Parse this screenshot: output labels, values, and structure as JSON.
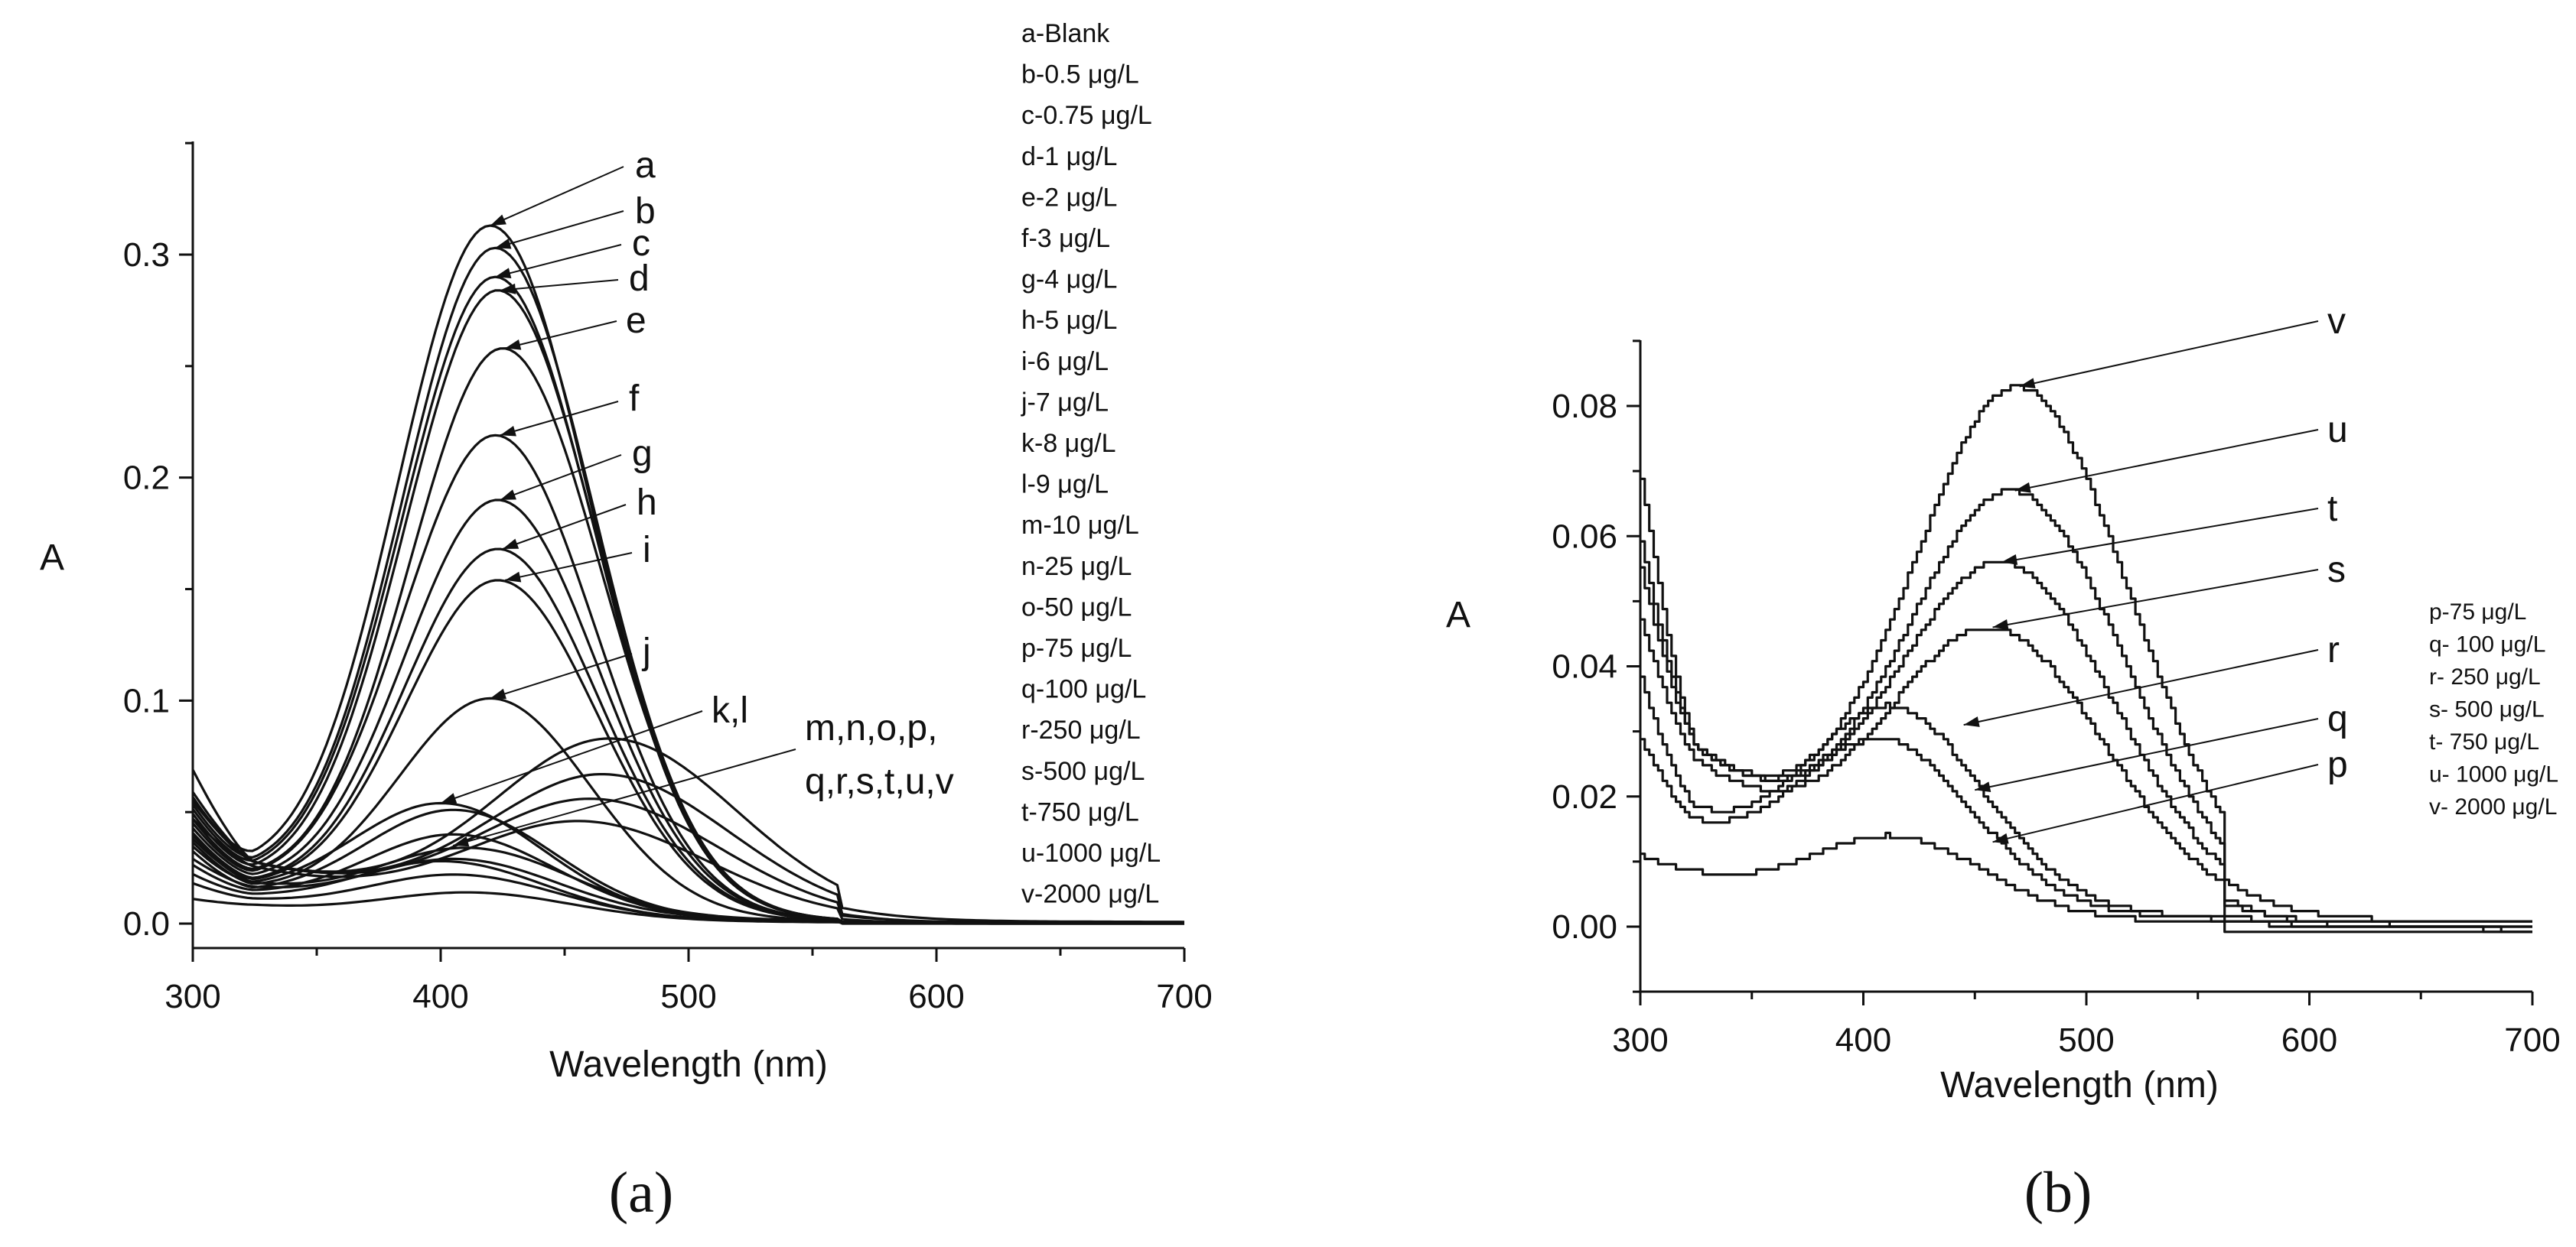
{
  "chart_data": [
    {
      "type": "line",
      "panel_label": "(a)",
      "xlabel": "Wavelength (nm)",
      "ylabel": "A",
      "xlim": [
        300,
        700
      ],
      "ylim": [
        -0.01,
        0.35
      ],
      "xticks": [
        300,
        400,
        500,
        600,
        700
      ],
      "yticks": [
        0.0,
        0.1,
        0.2,
        0.3
      ],
      "ytick_labels": [
        "0.0",
        "0.1",
        "0.2",
        "0.3"
      ],
      "legend": [
        "a-Blank",
        "b-0.5  μg/L",
        "c-0.75 μg/L",
        "d-1  μg/L",
        "e-2  μg/L",
        "f-3  μg/L",
        "g-4  μg/L",
        "h-5  μg/L",
        "i-6  μg/L",
        "j-7 μg/L",
        "k-8  μg/L",
        "l-9  μg/L",
        "m-10  μg/L",
        "n-25  μg/L",
        "o-50 μg/L",
        "p-75 μg/L",
        "q-100 μg/L",
        "r-250 μg/L",
        "s-500 μg/L",
        "t-750 μg/L",
        "u-1000 μg/L",
        "v-2000 μg/L"
      ],
      "annotations": [
        {
          "text": "a",
          "x": 420,
          "y": 0.313
        },
        {
          "text": "b",
          "x": 422,
          "y": 0.303
        },
        {
          "text": "c",
          "x": 422,
          "y": 0.29
        },
        {
          "text": "d",
          "x": 423,
          "y": 0.284
        },
        {
          "text": "e",
          "x": 425,
          "y": 0.258
        },
        {
          "text": "f",
          "x": 422,
          "y": 0.219
        },
        {
          "text": "g",
          "x": 423,
          "y": 0.19
        },
        {
          "text": "h",
          "x": 423,
          "y": 0.168
        },
        {
          "text": "i",
          "x": 423,
          "y": 0.154
        },
        {
          "text": "j",
          "x": 420,
          "y": 0.101
        },
        {
          "text": "k,l",
          "x": 405,
          "y": 0.054
        },
        {
          "text": "m,n,o,p,",
          "x": 410,
          "y": 0.035
        },
        {
          "text": "q,r,s,t,u,v",
          "x": 0,
          "y": 0
        }
      ],
      "series": [
        {
          "name": "a",
          "peak_x": 420,
          "peak_y": 0.313,
          "y300": 0.055,
          "min_y": 0.02
        },
        {
          "name": "b",
          "peak_x": 422,
          "peak_y": 0.303,
          "y300": 0.052,
          "min_y": 0.019
        },
        {
          "name": "c",
          "peak_x": 422,
          "peak_y": 0.29,
          "y300": 0.05,
          "min_y": 0.018
        },
        {
          "name": "d",
          "peak_x": 423,
          "peak_y": 0.284,
          "y300": 0.048,
          "min_y": 0.017
        },
        {
          "name": "e",
          "peak_x": 425,
          "peak_y": 0.258,
          "y300": 0.046,
          "min_y": 0.017
        },
        {
          "name": "f",
          "peak_x": 422,
          "peak_y": 0.219,
          "y300": 0.044,
          "min_y": 0.016
        },
        {
          "name": "g",
          "peak_x": 423,
          "peak_y": 0.19,
          "y300": 0.042,
          "min_y": 0.016
        },
        {
          "name": "h",
          "peak_x": 423,
          "peak_y": 0.168,
          "y300": 0.04,
          "min_y": 0.015
        },
        {
          "name": "i",
          "peak_x": 423,
          "peak_y": 0.154,
          "y300": 0.039,
          "min_y": 0.015
        },
        {
          "name": "j",
          "peak_x": 420,
          "peak_y": 0.101,
          "y300": 0.036,
          "min_y": 0.014
        },
        {
          "name": "k",
          "peak_x": 400,
          "peak_y": 0.054,
          "y300": 0.034,
          "min_y": 0.013
        },
        {
          "name": "l",
          "peak_x": 405,
          "peak_y": 0.051,
          "y300": 0.032,
          "min_y": 0.012
        },
        {
          "name": "m",
          "peak_x": 405,
          "peak_y": 0.04,
          "y300": 0.026,
          "min_y": 0.012
        },
        {
          "name": "n",
          "peak_x": 400,
          "peak_y": 0.028,
          "y300": 0.022,
          "min_y": 0.011
        },
        {
          "name": "o",
          "peak_x": 405,
          "peak_y": 0.022,
          "y300": 0.018,
          "min_y": 0.01
        }
      ]
    },
    {
      "type": "line",
      "panel_label": "(b)",
      "xlabel": "Wavelength (nm)",
      "ylabel": "A",
      "xlim": [
        300,
        700
      ],
      "ylim": [
        -0.01,
        0.09
      ],
      "xticks": [
        300,
        400,
        500,
        600,
        700
      ],
      "yticks": [
        0.0,
        0.02,
        0.04,
        0.06,
        0.08
      ],
      "ytick_labels": [
        "0.00",
        "0.02",
        "0.04",
        "0.06",
        "0.08"
      ],
      "legend": [
        "p-75  μg/L",
        "q- 100 μg/L",
        "r- 250 μg/L",
        "s- 500 μg/L",
        "t- 750 μg/L",
        "u- 1000 μg/L",
        "v- 2000 μg/L"
      ],
      "series": [
        {
          "name": "p",
          "peak_x": 410,
          "peak_y": 0.014,
          "y300": 0.011,
          "min_y": 0.008,
          "tail": 0.001
        },
        {
          "name": "q",
          "peak_x": 405,
          "peak_y": 0.029,
          "y300": 0.029,
          "min_y": 0.015,
          "tail": -0.002
        },
        {
          "name": "r",
          "peak_x": 410,
          "peak_y": 0.034,
          "y300": 0.038,
          "min_y": 0.017,
          "tail": 0.0
        },
        {
          "name": "s",
          "peak_x": 455,
          "peak_y": 0.046,
          "y300": 0.047,
          "min_y": 0.025,
          "tail": -0.001
        },
        {
          "name": "t",
          "peak_x": 460,
          "peak_y": 0.056,
          "y300": 0.055,
          "min_y": 0.027,
          "tail": 0.0
        },
        {
          "name": "u",
          "peak_x": 465,
          "peak_y": 0.067,
          "y300": 0.059,
          "min_y": 0.027,
          "tail": -0.001
        },
        {
          "name": "v",
          "peak_x": 468,
          "peak_y": 0.083,
          "y300": 0.069,
          "min_y": 0.027,
          "tail": 0.001
        }
      ]
    }
  ]
}
